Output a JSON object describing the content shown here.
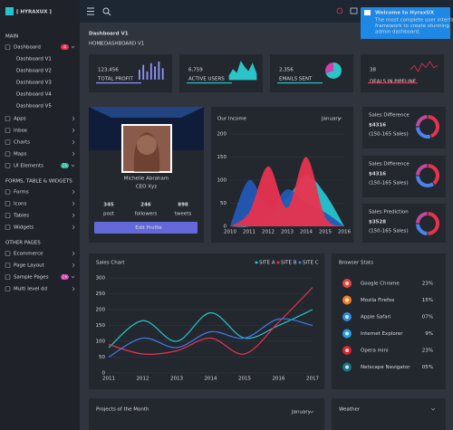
{
  "sidebar": {
    "logo": "[ HYRAXUX ]",
    "sections": [
      {
        "title": "MAIN",
        "items": [
          {
            "label": "Dashboard",
            "badge": "4",
            "badge_color": "#e8334f",
            "children": [
              "Dashboard V1",
              "Dashboard V2",
              "Dashboard V3",
              "Dashboard V4",
              "Dashboard V5"
            ]
          },
          {
            "label": "Apps"
          },
          {
            "label": "Inbox"
          },
          {
            "label": "Charts"
          },
          {
            "label": "Maps"
          },
          {
            "label": "UI Elements",
            "badge": "2k",
            "badge_color": "#26b99a"
          }
        ]
      },
      {
        "title": "FORMS, TABLE & WIDGETS",
        "items": [
          {
            "label": "Forms"
          },
          {
            "label": "Icons"
          },
          {
            "label": "Tables"
          },
          {
            "label": "Widgets"
          }
        ]
      },
      {
        "title": "OTHER PAGES",
        "items": [
          {
            "label": "Ecommerce"
          },
          {
            "label": "Page Layout"
          },
          {
            "label": "Sample Pages",
            "badge": "2k",
            "badge_color": "#d63fa8"
          },
          {
            "label": "Multi level dd"
          }
        ]
      }
    ]
  },
  "notification": {
    "title": "Welcome to HyraxUX",
    "body_lines": [
      "The most complete user interface",
      "framework to create stunning",
      "admin dashboard."
    ]
  },
  "header": {
    "title": "Dashboard V1",
    "breadcrumb": [
      "HOME",
      "DASHBOARD V1"
    ]
  },
  "stats": [
    {
      "value": "123,456",
      "label": "TOTAL PROFIT",
      "color": "#8f94ff",
      "spark": [
        6,
        9,
        5,
        10,
        8,
        11,
        7
      ]
    },
    {
      "value": "6,759",
      "label": "ACTIVE USERS",
      "color": "#2bc4c9",
      "spark": [
        2,
        5,
        3,
        9,
        6,
        4,
        8,
        3
      ]
    },
    {
      "value": "2,356",
      "label": "EMAILS SENT",
      "color": "#2bc4c9",
      "spark": [
        70,
        30
      ]
    },
    {
      "value": "38",
      "label": "DEALS IN PIPELINE",
      "color": "#e8334f",
      "spark": [
        5,
        7,
        4,
        8,
        6,
        9,
        6,
        7
      ]
    }
  ],
  "profile": {
    "name": "Michelle Abraham",
    "role": "CEO Xyz",
    "stats": [
      {
        "value": "345",
        "label": "post"
      },
      {
        "value": "246",
        "label": "followers"
      },
      {
        "value": "898",
        "label": "tweets"
      }
    ],
    "button": "Edit Profile"
  },
  "income_chart": {
    "title": "Our Income",
    "period": "January",
    "categories": [
      "2010",
      "2011",
      "2012",
      "2013",
      "2014",
      "2015",
      "2016"
    ],
    "ylim": [
      0,
      200
    ],
    "yticks": [
      0,
      50,
      100,
      150,
      200
    ],
    "series": [
      {
        "color": "#27c4cf",
        "values": [
          0,
          0,
          20,
          60,
          110,
          70,
          0
        ]
      },
      {
        "color": "#2358b5",
        "values": [
          0,
          100,
          40,
          80,
          50,
          30,
          0
        ]
      },
      {
        "color": "#e8334f",
        "values": [
          0,
          30,
          130,
          40,
          150,
          20,
          0
        ]
      }
    ]
  },
  "sales_cards": [
    {
      "title": "Sales Difference",
      "value": "$4316",
      "note": "(150-165 Sales)",
      "values": [
        45,
        30,
        25
      ],
      "colors": [
        "#e8334f",
        "#4a84f0",
        "#c04a9c"
      ]
    },
    {
      "title": "Sales Difference",
      "value": "$4316",
      "note": "(150-165 Sales)",
      "values": [
        40,
        35,
        25
      ],
      "colors": [
        "#e8334f",
        "#4a84f0",
        "#c04a9c"
      ]
    },
    {
      "title": "Sales Prediction",
      "value": "$3528",
      "note": "(150-165 Sales)",
      "values": [
        50,
        25,
        25
      ],
      "colors": [
        "#e8334f",
        "#4a84f0",
        "#c04a9c"
      ]
    }
  ],
  "sales_chart": {
    "title": "Sales Chart",
    "categories": [
      "2011",
      "2012",
      "2013",
      "2014",
      "2015",
      "2016",
      "2017"
    ],
    "ylim": [
      0,
      300
    ],
    "yticks": [
      0,
      50,
      100,
      150,
      200,
      250,
      300
    ],
    "series": [
      {
        "name": "SITE A",
        "color": "#27c4cf",
        "values": [
          80,
          165,
          100,
          190,
          110,
          150,
          200
        ]
      },
      {
        "name": "SITE B",
        "color": "#e8334f",
        "values": [
          90,
          60,
          70,
          110,
          60,
          160,
          270
        ]
      },
      {
        "name": "SITE C",
        "color": "#3d7bea",
        "values": [
          50,
          110,
          80,
          130,
          110,
          170,
          150
        ]
      }
    ]
  },
  "browser_stats": {
    "title": "Browser Stats",
    "rows": [
      {
        "name": "Google Chrome",
        "share": "23%",
        "color": "#e8453c"
      },
      {
        "name": "Mozila Firefox",
        "share": "15%",
        "color": "#f57c1f"
      },
      {
        "name": "Apple Safari",
        "share": "07%",
        "color": "#2a8be0"
      },
      {
        "name": "Internet Explorer",
        "share": "9%",
        "color": "#1fa0e3"
      },
      {
        "name": "Opera mini",
        "share": "23%",
        "color": "#d8262f"
      },
      {
        "name": "Netscape Navigator",
        "share": "05%",
        "color": "#14788c"
      }
    ]
  },
  "projects": {
    "title": "Projects of the Month",
    "period": "January"
  },
  "weather": {
    "title": "Weather"
  }
}
